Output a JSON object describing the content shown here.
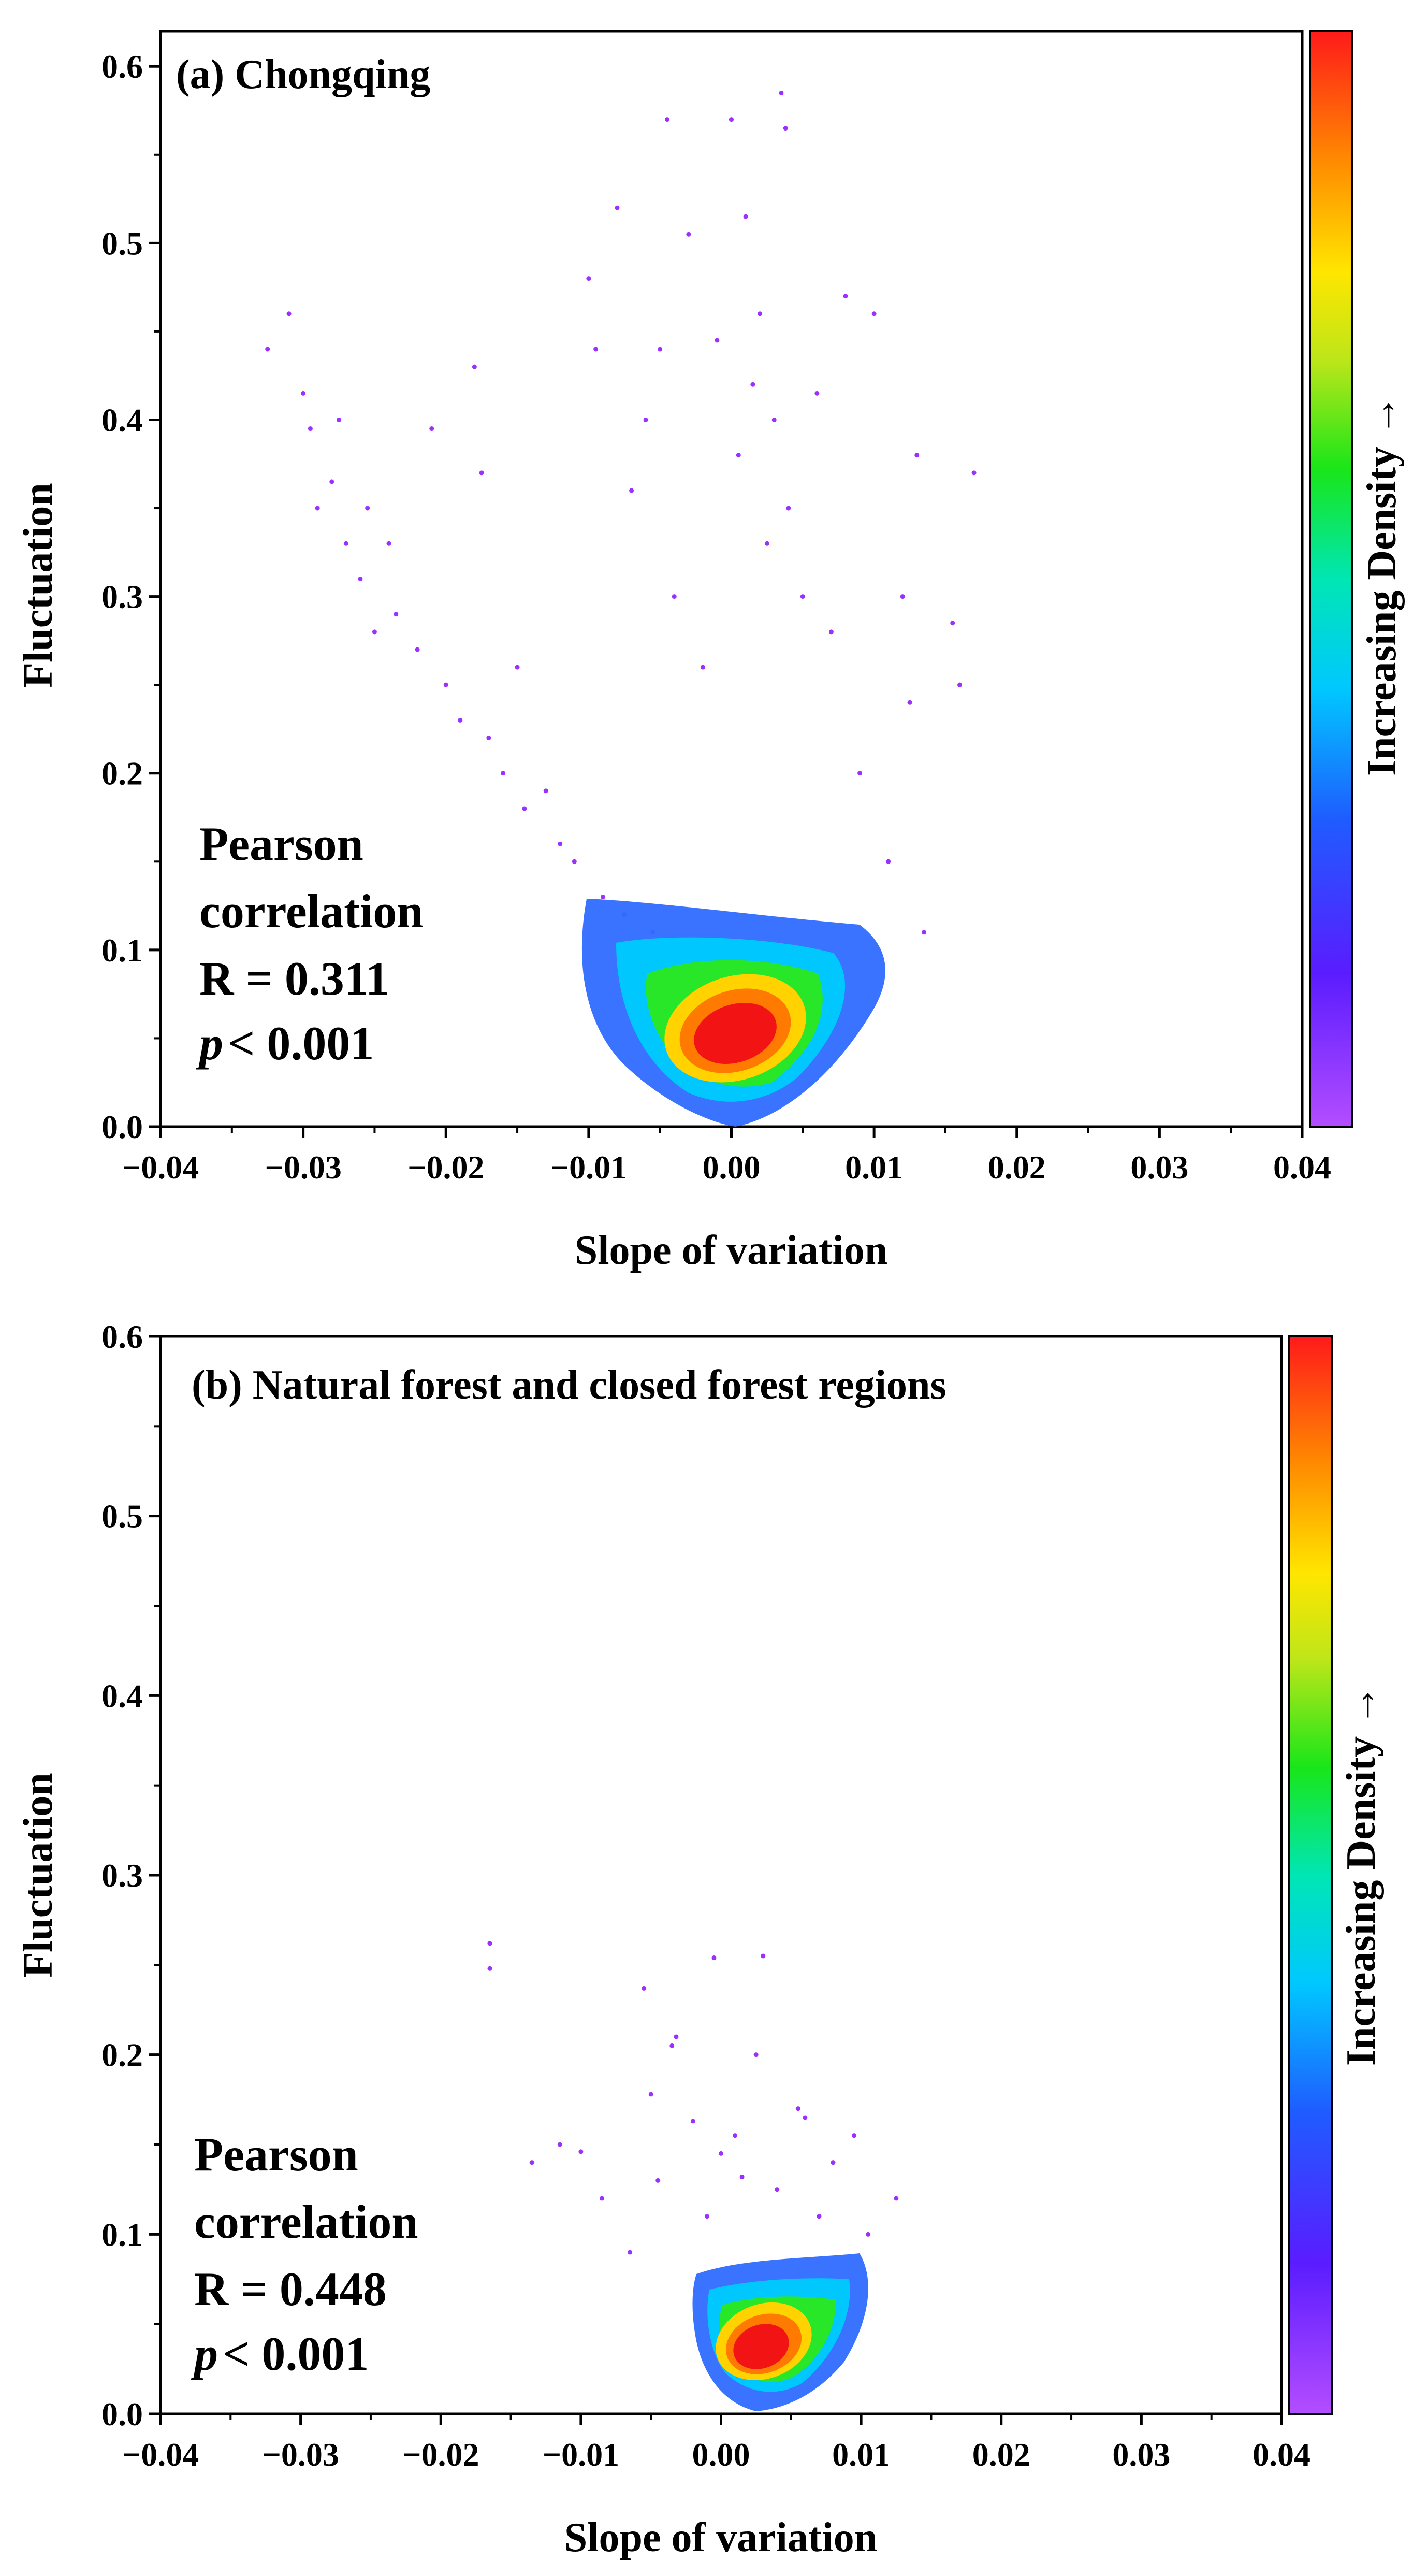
{
  "chart_data": [
    {
      "type": "scatter",
      "title": "(a) Chongqing",
      "xlabel": "Slope of variation",
      "ylabel": "Fluctuation",
      "xlim": [
        -0.04,
        0.04
      ],
      "ylim": [
        0.0,
        0.62
      ],
      "xticks": [
        -0.04,
        -0.03,
        -0.02,
        -0.01,
        0.0,
        0.01,
        0.02,
        0.03,
        0.04
      ],
      "xtick_labels": [
        "−0.04",
        "−0.03",
        "−0.02",
        "−0.01",
        "0.00",
        "0.01",
        "0.02",
        "0.03",
        "0.04"
      ],
      "yticks": [
        0.0,
        0.1,
        0.2,
        0.3,
        0.4,
        0.5,
        0.6
      ],
      "ytick_labels": [
        "0.0",
        "0.1",
        "0.2",
        "0.3",
        "0.4",
        "0.5",
        "0.6"
      ],
      "colorbar_label": "Increasing Density →",
      "annotation": [
        "Pearson",
        "correlation",
        "R = 0.311",
        "p",
        "< 0.001"
      ],
      "stats": {
        "pearson_r": 0.311,
        "p_value": "< 0.001"
      },
      "density_core": {
        "x": 0.003,
        "y": 0.04
      },
      "points": [
        [
          -0.0325,
          0.44
        ],
        [
          -0.031,
          0.46
        ],
        [
          -0.03,
          0.415
        ],
        [
          -0.0295,
          0.395
        ],
        [
          -0.029,
          0.35
        ],
        [
          -0.028,
          0.365
        ],
        [
          -0.0275,
          0.4
        ],
        [
          -0.027,
          0.33
        ],
        [
          -0.026,
          0.31
        ],
        [
          -0.0255,
          0.35
        ],
        [
          -0.025,
          0.28
        ],
        [
          -0.024,
          0.33
        ],
        [
          -0.0235,
          0.29
        ],
        [
          -0.022,
          0.27
        ],
        [
          -0.021,
          0.395
        ],
        [
          -0.02,
          0.25
        ],
        [
          -0.019,
          0.23
        ],
        [
          -0.018,
          0.43
        ],
        [
          -0.0175,
          0.37
        ],
        [
          -0.017,
          0.22
        ],
        [
          -0.016,
          0.2
        ],
        [
          -0.015,
          0.26
        ],
        [
          -0.0145,
          0.18
        ],
        [
          -0.013,
          0.19
        ],
        [
          -0.012,
          0.16
        ],
        [
          -0.011,
          0.15
        ],
        [
          -0.01,
          0.48
        ],
        [
          -0.0095,
          0.44
        ],
        [
          -0.009,
          0.13
        ],
        [
          -0.008,
          0.52
        ],
        [
          -0.0075,
          0.12
        ],
        [
          -0.007,
          0.36
        ],
        [
          -0.006,
          0.4
        ],
        [
          -0.0055,
          0.11
        ],
        [
          -0.005,
          0.44
        ],
        [
          -0.0045,
          0.57
        ],
        [
          -0.004,
          0.3
        ],
        [
          -0.0035,
          0.1
        ],
        [
          -0.003,
          0.505
        ],
        [
          -0.002,
          0.26
        ],
        [
          -0.001,
          0.445
        ],
        [
          0.0,
          0.57
        ],
        [
          0.0005,
          0.38
        ],
        [
          0.001,
          0.515
        ],
        [
          0.0015,
          0.42
        ],
        [
          0.002,
          0.46
        ],
        [
          0.0025,
          0.33
        ],
        [
          0.003,
          0.4
        ],
        [
          0.0035,
          0.585
        ],
        [
          0.0038,
          0.565
        ],
        [
          0.004,
          0.35
        ],
        [
          0.005,
          0.3
        ],
        [
          0.006,
          0.415
        ],
        [
          0.007,
          0.28
        ],
        [
          0.008,
          0.47
        ],
        [
          0.009,
          0.2
        ],
        [
          0.01,
          0.46
        ],
        [
          0.011,
          0.15
        ],
        [
          0.012,
          0.3
        ],
        [
          0.0125,
          0.24
        ],
        [
          0.013,
          0.38
        ],
        [
          0.0135,
          0.11
        ],
        [
          0.0155,
          0.285
        ],
        [
          0.016,
          0.25
        ],
        [
          0.017,
          0.37
        ]
      ]
    },
    {
      "type": "scatter",
      "title": "(b) Natural forest and closed forest regions",
      "xlabel": "Slope of variation",
      "ylabel": "Fluctuation",
      "xlim": [
        -0.04,
        0.04
      ],
      "ylim": [
        0.0,
        0.6
      ],
      "xticks": [
        -0.04,
        -0.03,
        -0.02,
        -0.01,
        0.0,
        0.01,
        0.02,
        0.03,
        0.04
      ],
      "xtick_labels": [
        "−0.04",
        "−0.03",
        "−0.02",
        "−0.01",
        "0.00",
        "0.01",
        "0.02",
        "0.03",
        "0.04"
      ],
      "yticks": [
        0.0,
        0.1,
        0.2,
        0.3,
        0.4,
        0.5,
        0.6
      ],
      "ytick_labels": [
        "0.0",
        "0.1",
        "0.2",
        "0.3",
        "0.4",
        "0.5",
        "0.6"
      ],
      "colorbar_label": "Increasing Density →",
      "annotation": [
        "Pearson",
        "correlation",
        "R = 0.448",
        "p",
        "< 0.001"
      ],
      "stats": {
        "pearson_r": 0.448,
        "p_value": "< 0.001"
      },
      "density_core": {
        "x": 0.003,
        "y": 0.035
      },
      "points": [
        [
          -0.0165,
          0.262
        ],
        [
          -0.0165,
          0.248
        ],
        [
          -0.0135,
          0.14
        ],
        [
          -0.0115,
          0.15
        ],
        [
          -0.01,
          0.146
        ],
        [
          -0.0085,
          0.12
        ],
        [
          -0.0065,
          0.09
        ],
        [
          -0.0055,
          0.237
        ],
        [
          -0.005,
          0.178
        ],
        [
          -0.0045,
          0.13
        ],
        [
          -0.0035,
          0.205
        ],
        [
          -0.0032,
          0.21
        ],
        [
          -0.002,
          0.163
        ],
        [
          -0.001,
          0.11
        ],
        [
          -0.0005,
          0.254
        ],
        [
          0.0,
          0.145
        ],
        [
          0.001,
          0.155
        ],
        [
          0.0015,
          0.132
        ],
        [
          0.0025,
          0.2
        ],
        [
          0.003,
          0.255
        ],
        [
          0.004,
          0.125
        ],
        [
          0.0055,
          0.17
        ],
        [
          0.006,
          0.165
        ],
        [
          0.007,
          0.11
        ],
        [
          0.008,
          0.14
        ],
        [
          0.0095,
          0.155
        ],
        [
          0.0105,
          0.1
        ],
        [
          0.0125,
          0.12
        ]
      ]
    }
  ]
}
